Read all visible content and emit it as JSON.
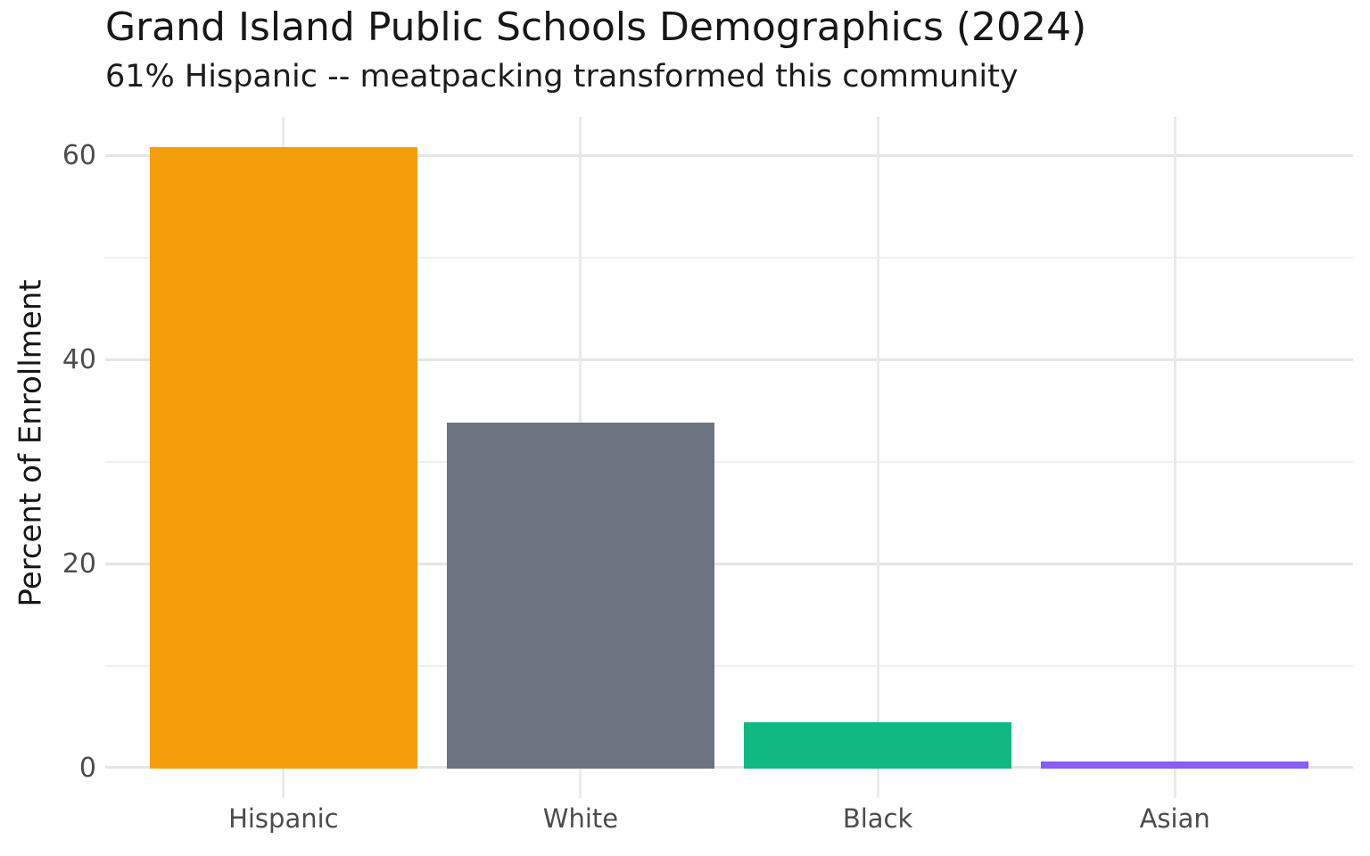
{
  "chart_data": {
    "type": "bar",
    "title": "Grand Island Public Schools Demographics (2024)",
    "subtitle": "61% Hispanic -- meatpacking transformed this community",
    "xlabel": "",
    "ylabel": "Percent of Enrollment",
    "categories": [
      "Hispanic",
      "White",
      "Black",
      "Asian"
    ],
    "values": [
      60.8,
      33.9,
      4.5,
      0.7
    ],
    "bar_colors": [
      "#F59E0B",
      "#6B7280",
      "#10B981",
      "#8B5CF6"
    ],
    "ylim": [
      0,
      63.8
    ],
    "yticks_major": [
      0,
      20,
      40,
      60
    ],
    "yticks_minor": [
      10,
      30,
      50
    ],
    "grid": "on",
    "legend_position": "none",
    "colors": {
      "background": "#FFFFFF",
      "title_text": "#171717",
      "axis_text": "#4C4C4C",
      "grid_major": "#E4E5E7",
      "grid_minor": "#EFF0F2"
    }
  }
}
